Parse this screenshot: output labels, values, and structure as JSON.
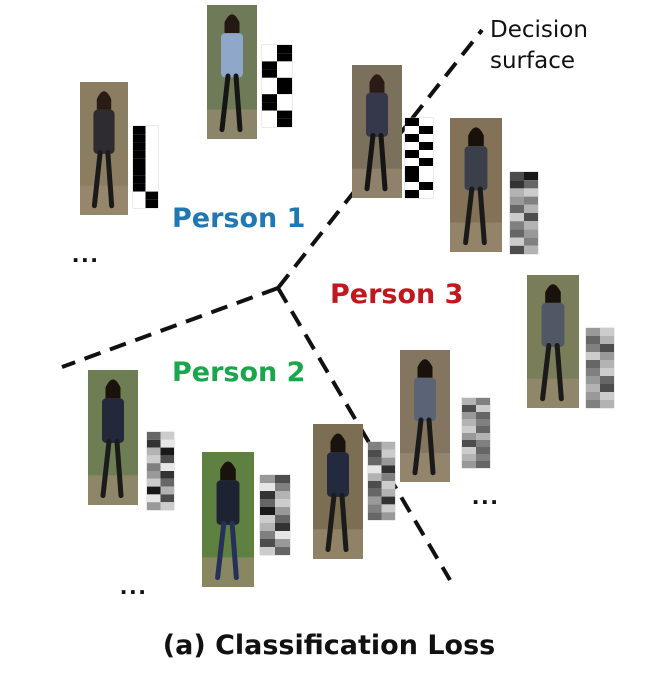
{
  "decision_surface": {
    "line1": "Decision",
    "line2": "surface"
  },
  "classes": [
    {
      "name": "Person 1",
      "color": "#1f78b4"
    },
    {
      "name": "Person 2",
      "color": "#1aa64c"
    },
    {
      "name": "Person 3",
      "color": "#c0181f"
    }
  ],
  "ellipsis": "...",
  "caption": "(a) Classification Loss",
  "samples": [
    {
      "person": 1,
      "bg": "#8b7d62",
      "coat": "#2e2c30",
      "pants": "#1a1a1a",
      "hair": "#2a1c14",
      "code": [
        1,
        0,
        1,
        0,
        1,
        0,
        1,
        0,
        1,
        0,
        1,
        0,
        1,
        0,
        1,
        0,
        0,
        1,
        0,
        1
      ]
    },
    {
      "person": 1,
      "bg": "#6f7a58",
      "coat": "#8fa7c9",
      "pants": "#151515",
      "hair": "#241812",
      "code": [
        0,
        1,
        0,
        1,
        1,
        0,
        1,
        0,
        0,
        1,
        0,
        1,
        1,
        0,
        1,
        0,
        0,
        1,
        0,
        1
      ]
    },
    {
      "person": 1,
      "bg": "#7a705c",
      "coat": "#34384a",
      "pants": "#151515",
      "hair": "#2a1c14",
      "code": [
        1,
        0,
        0,
        1,
        1,
        0,
        0,
        1,
        1,
        0,
        0,
        1,
        1,
        0,
        1,
        0,
        0,
        1,
        1,
        0
      ]
    },
    {
      "person": 2,
      "bg": "#6f7d55",
      "coat": "#23283a",
      "pants": "#1b1b1b",
      "hair": "#1a120d",
      "code": [
        0.6,
        0.2,
        0.8,
        0.1,
        0.3,
        0.9,
        0.2,
        0.7,
        0.5,
        0.1,
        0.4,
        0.8,
        0.2,
        0.6,
        0.9,
        0.3,
        0.1,
        0.7,
        0.4,
        0.2
      ]
    },
    {
      "person": 2,
      "bg": "#5e8040",
      "coat": "#1e2333",
      "pants": "#26305a",
      "hair": "#1a120d",
      "code": [
        0.4,
        0.7,
        0.1,
        0.5,
        0.8,
        0.3,
        0.6,
        0.2,
        0.9,
        0.4,
        0.2,
        0.6,
        0.3,
        0.8,
        0.5,
        0.1,
        0.7,
        0.4,
        0.2,
        0.6
      ]
    },
    {
      "person": 2,
      "bg": "#7b6e52",
      "coat": "#232a3e",
      "pants": "#1b1b1b",
      "hair": "#1a120d",
      "code": [
        0.5,
        0.3,
        0.7,
        0.2,
        0.6,
        0.4,
        0.1,
        0.8,
        0.3,
        0.5,
        0.7,
        0.2,
        0.6,
        0.3,
        0.4,
        0.8,
        0.5,
        0.2,
        0.6,
        0.4
      ]
    },
    {
      "person": 3,
      "bg": "#837258",
      "coat": "#3a3f4a",
      "pants": "#1a1a1a",
      "hair": "#18110c",
      "code": [
        0.7,
        0.9,
        0.8,
        0.6,
        0.3,
        0.2,
        0.4,
        0.5,
        0.6,
        0.3,
        0.2,
        0.7,
        0.5,
        0.3,
        0.6,
        0.4,
        0.2,
        0.5,
        0.7,
        0.3
      ]
    },
    {
      "person": 3,
      "bg": "#847561",
      "coat": "#5a6474",
      "pants": "#1a1a1a",
      "hair": "#18110c",
      "code": [
        0.3,
        0.5,
        0.7,
        0.2,
        0.4,
        0.6,
        0.3,
        0.5,
        0.2,
        0.6,
        0.4,
        0.3,
        0.7,
        0.5,
        0.2,
        0.6,
        0.3,
        0.5,
        0.4,
        0.6
      ]
    },
    {
      "person": 3,
      "bg": "#7a7d5a",
      "coat": "#4f5864",
      "pants": "#1a1a1a",
      "hair": "#18110c",
      "code": [
        0.4,
        0.2,
        0.6,
        0.3,
        0.5,
        0.7,
        0.2,
        0.4,
        0.6,
        0.3,
        0.5,
        0.2,
        0.4,
        0.6,
        0.3,
        0.7,
        0.4,
        0.2,
        0.5,
        0.3
      ]
    }
  ]
}
